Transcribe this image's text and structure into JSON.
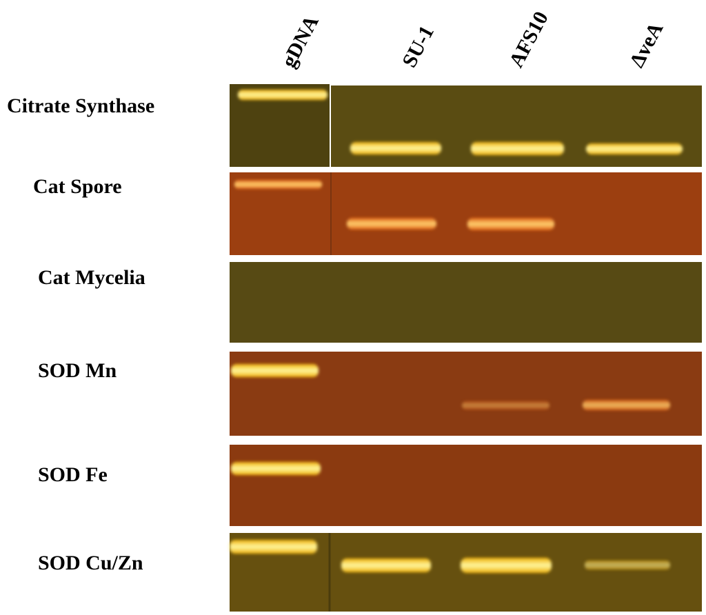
{
  "columns": [
    "gDNA",
    "SU-1",
    "AFS10",
    "ΔveA"
  ],
  "rows": [
    "Citrate Synthase",
    "Cat Spore",
    "Cat Mycelia",
    "SOD Mn",
    "SOD Fe",
    "SOD Cu/Zn"
  ]
}
